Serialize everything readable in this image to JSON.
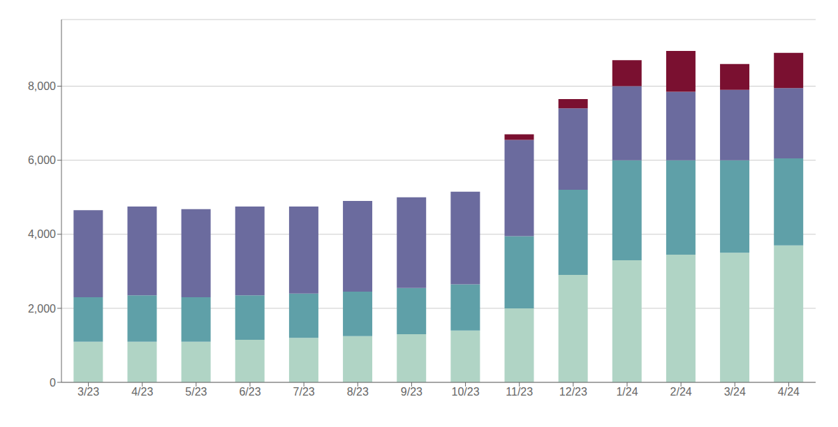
{
  "chart_data": {
    "type": "bar",
    "stacked": true,
    "grid": true,
    "categories": [
      "3/23",
      "4/23",
      "5/23",
      "6/23",
      "7/23",
      "8/23",
      "9/23",
      "10/23",
      "11/23",
      "12/23",
      "1/24",
      "2/24",
      "3/24",
      "4/24"
    ],
    "series": [
      {
        "color": "#b0d4c5",
        "values": [
          1100,
          1100,
          1100,
          1150,
          1200,
          1250,
          1300,
          1400,
          2000,
          2900,
          3300,
          3450,
          3500,
          3700
        ]
      },
      {
        "color": "#5fa0a8",
        "values": [
          1200,
          1250,
          1200,
          1200,
          1200,
          1200,
          1250,
          1250,
          1950,
          2300,
          2700,
          2550,
          2500,
          2350
        ]
      },
      {
        "color": "#6b6b9e",
        "values": [
          2350,
          2400,
          2380,
          2400,
          2350,
          2450,
          2450,
          2500,
          2600,
          2200,
          2000,
          1850,
          1900,
          1900
        ]
      },
      {
        "color": "#7a1030",
        "values": [
          0,
          0,
          0,
          0,
          0,
          0,
          0,
          0,
          150,
          250,
          700,
          1100,
          700,
          950
        ]
      }
    ],
    "ylim": [
      0,
      9800
    ],
    "yticks": [
      0,
      {
        "value": 2000,
        "label": "2,000"
      },
      {
        "value": 4000,
        "label": "4,000"
      },
      {
        "value": 6000,
        "label": "6,000"
      },
      {
        "value": 8000,
        "label": "8,000"
      }
    ]
  }
}
